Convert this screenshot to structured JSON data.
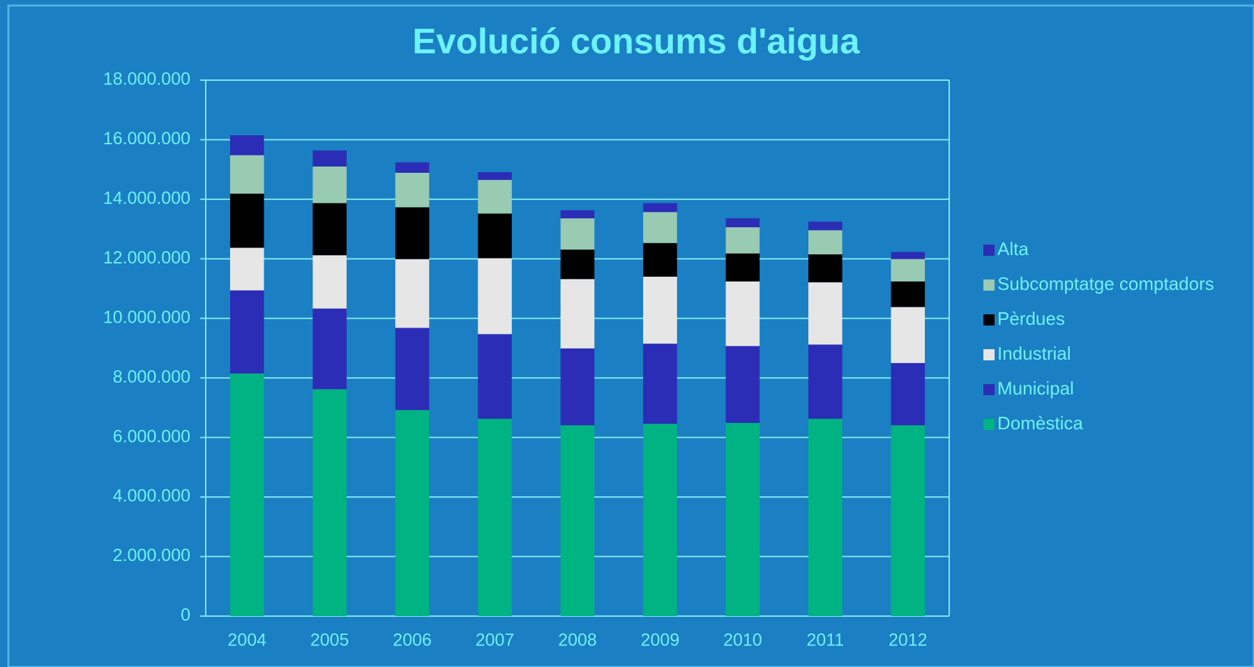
{
  "chart_data": {
    "type": "stacked_bar",
    "title": "Evolució consums d'aigua",
    "categories": [
      "2004",
      "2005",
      "2006",
      "2007",
      "2008",
      "2009",
      "2010",
      "2011",
      "2012"
    ],
    "series": [
      {
        "name": "Domèstica",
        "color": "#00b383",
        "values": [
          8150000,
          7620000,
          6920000,
          6630000,
          6410000,
          6460000,
          6490000,
          6630000,
          6410000
        ]
      },
      {
        "name": "Municipal",
        "color": "#2c2db6",
        "values": [
          2790000,
          2710000,
          2760000,
          2840000,
          2580000,
          2690000,
          2580000,
          2490000,
          2090000
        ]
      },
      {
        "name": "Industrial",
        "color": "#e6e6e6",
        "values": [
          1430000,
          1790000,
          2310000,
          2550000,
          2330000,
          2250000,
          2170000,
          2090000,
          1880000
        ]
      },
      {
        "name": "Pèrdues",
        "color": "#000000",
        "values": [
          1820000,
          1750000,
          1740000,
          1500000,
          990000,
          1130000,
          940000,
          940000,
          860000
        ]
      },
      {
        "name": "Subcomptatge comptadors",
        "color": "#99cbb2",
        "values": [
          1290000,
          1230000,
          1160000,
          1130000,
          1050000,
          1040000,
          880000,
          810000,
          750000
        ]
      },
      {
        "name": "Alta",
        "color": "#2c2db6",
        "values": [
          670000,
          540000,
          350000,
          260000,
          270000,
          300000,
          300000,
          290000,
          240000
        ]
      }
    ],
    "ylim": [
      0,
      18000000
    ],
    "yticks": [
      0,
      {
        "value": 2000000,
        "label": "2.000.000"
      },
      {
        "value": 4000000,
        "label": "4.000.000"
      },
      {
        "value": 6000000,
        "label": "6.000.000"
      },
      {
        "value": 8000000,
        "label": "8.000.000"
      },
      {
        "value": 10000000,
        "label": "10.000.000"
      },
      {
        "value": 12000000,
        "label": "12.000.000"
      },
      {
        "value": 14000000,
        "label": "14.000.000"
      },
      {
        "value": 16000000,
        "label": "16.000.000"
      },
      {
        "value": 18000000,
        "label": "18.000.000"
      }
    ],
    "grid": true,
    "legend": "right"
  }
}
